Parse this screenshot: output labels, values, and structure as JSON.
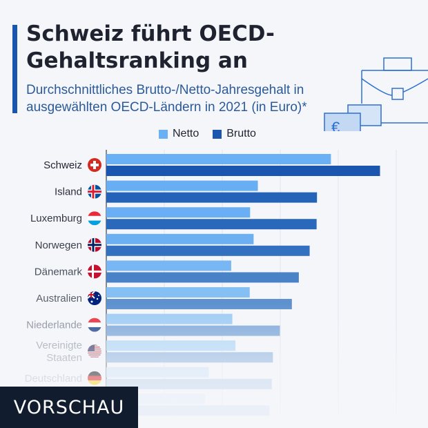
{
  "header": {
    "title": "Schweiz führt OECD-Gehaltsranking an",
    "subtitle": "Durchschnittliches Brutto-/Netto-Jahresgehalt in ausgewählten OECD-Ländern in 2021 (in Euro)*"
  },
  "legend": {
    "netto_label": "Netto",
    "brutto_label": "Brutto",
    "netto_color": "#6ab0f5",
    "brutto_color": "#1a56b0"
  },
  "preview_badge": "VORSCHAU",
  "chart_data": {
    "type": "bar",
    "orientation": "horizontal",
    "categories": [
      "Schweiz",
      "Island",
      "Luxemburg",
      "Norwegen",
      "Dänemark",
      "Australien",
      "Niederlande",
      "Vereinigte Staaten",
      "Deutschland",
      ""
    ],
    "category_icons": [
      "flag-switzerland",
      "flag-iceland",
      "flag-luxembourg",
      "flag-norway",
      "flag-denmark",
      "flag-australia",
      "flag-netherlands",
      "flag-usa",
      "flag-germany",
      ""
    ],
    "series": [
      {
        "name": "Netto",
        "values": [
          58100,
          39200,
          37200,
          38100,
          32300,
          37100,
          32600,
          33400,
          26500,
          25600
        ]
      },
      {
        "name": "Brutto",
        "values": [
          70800,
          54500,
          54400,
          52600,
          49800,
          48000,
          44900,
          43100,
          42800,
          42200
        ]
      }
    ],
    "xlim": [
      0,
      75000
    ],
    "grid": true,
    "legend_position": "top"
  }
}
